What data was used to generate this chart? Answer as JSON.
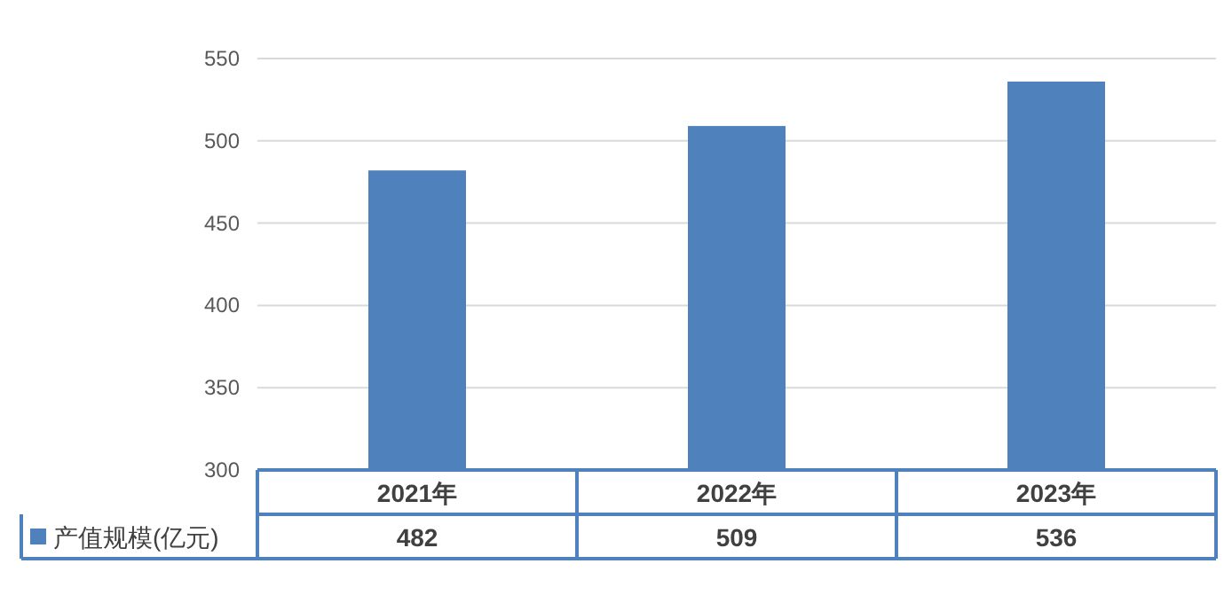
{
  "chart_data": {
    "type": "bar",
    "categories": [
      "2021年",
      "2022年",
      "2023年"
    ],
    "series": [
      {
        "name": "产值规模(亿元)",
        "color": "#4f81bd",
        "values": [
          482,
          509,
          536
        ]
      }
    ],
    "ylim": [
      300,
      550
    ],
    "yticks": [
      300,
      350,
      400,
      450,
      500,
      550
    ],
    "grid": "y",
    "data_labels": true,
    "legend": "bottom left"
  }
}
